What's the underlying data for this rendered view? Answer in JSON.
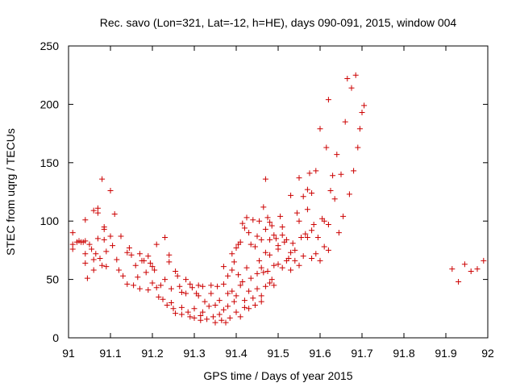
{
  "chart_data": {
    "type": "scatter",
    "title": "Rec. savo (Lon=321, Lat=-12, h=HE), days 090-091, 2015, window 004",
    "xlabel": "GPS time / Days of year 2015",
    "ylabel": "STEC from uqrg / TECUs",
    "xlim": [
      91,
      92
    ],
    "ylim": [
      0,
      250
    ],
    "x_ticks": [
      91,
      91.1,
      91.2,
      91.3,
      91.4,
      91.5,
      91.6,
      91.7,
      91.8,
      91.9,
      92
    ],
    "x_tick_labels": [
      "91",
      "91.1",
      "91.2",
      "91.3",
      "91.4",
      "91.5",
      "91.6",
      "91.7",
      "91.8",
      "91.9",
      "92"
    ],
    "y_ticks": [
      0,
      50,
      100,
      150,
      200,
      250
    ],
    "y_tick_labels": [
      "0",
      "50",
      "100",
      "150",
      "200",
      "250"
    ],
    "grid": false,
    "marker": "+",
    "colors": {
      "marker": "#cc0000",
      "axis": "#000000"
    },
    "series": [
      {
        "points": [
          [
            91.01,
            90
          ],
          [
            91.01,
            80
          ],
          [
            91.01,
            76
          ],
          [
            91.02,
            82
          ],
          [
            91.025,
            83
          ],
          [
            91.03,
            82
          ],
          [
            91.035,
            82
          ],
          [
            91.04,
            101
          ],
          [
            91.04,
            83
          ],
          [
            91.04,
            72
          ],
          [
            91.04,
            64
          ],
          [
            91.045,
            51
          ],
          [
            91.05,
            80
          ],
          [
            91.055,
            76
          ],
          [
            91.06,
            109
          ],
          [
            91.06,
            67
          ],
          [
            91.06,
            58
          ],
          [
            91.065,
            72
          ],
          [
            91.07,
            111
          ],
          [
            91.07,
            107
          ],
          [
            91.07,
            85
          ],
          [
            91.075,
            68
          ],
          [
            91.08,
            62
          ],
          [
            91.085,
            95
          ],
          [
            91.085,
            93
          ],
          [
            91.085,
            84
          ],
          [
            91.09,
            74
          ],
          [
            91.09,
            61
          ],
          [
            91.08,
            136
          ],
          [
            91.1,
            126
          ],
          [
            91.1,
            87
          ],
          [
            91.105,
            79
          ],
          [
            91.11,
            106
          ],
          [
            91.115,
            67
          ],
          [
            91.12,
            58
          ],
          [
            91.125,
            87
          ],
          [
            91.13,
            53
          ],
          [
            91.14,
            73
          ],
          [
            91.14,
            46
          ],
          [
            91.145,
            77
          ],
          [
            91.15,
            71
          ],
          [
            91.155,
            45
          ],
          [
            91.16,
            62
          ],
          [
            91.165,
            52
          ],
          [
            91.17,
            42
          ],
          [
            91.17,
            72
          ],
          [
            91.175,
            66
          ],
          [
            91.18,
            66
          ],
          [
            91.185,
            56
          ],
          [
            91.19,
            41
          ],
          [
            91.19,
            70
          ],
          [
            91.195,
            64
          ],
          [
            91.2,
            61
          ],
          [
            91.2,
            47
          ],
          [
            91.205,
            58
          ],
          [
            91.21,
            80
          ],
          [
            91.21,
            43
          ],
          [
            91.215,
            35
          ],
          [
            91.22,
            45
          ],
          [
            91.225,
            33
          ],
          [
            91.23,
            86
          ],
          [
            91.23,
            50
          ],
          [
            91.235,
            28
          ],
          [
            91.24,
            71
          ],
          [
            91.24,
            65
          ],
          [
            91.245,
            42
          ],
          [
            91.245,
            30
          ],
          [
            91.25,
            25
          ],
          [
            91.255,
            21
          ],
          [
            91.255,
            57
          ],
          [
            91.26,
            53
          ],
          [
            91.265,
            44
          ],
          [
            91.27,
            26
          ],
          [
            91.27,
            39
          ],
          [
            91.27,
            20
          ],
          [
            91.28,
            50
          ],
          [
            91.28,
            38
          ],
          [
            91.285,
            22
          ],
          [
            91.29,
            18
          ],
          [
            91.29,
            46
          ],
          [
            91.295,
            43
          ],
          [
            91.3,
            25
          ],
          [
            91.3,
            17
          ],
          [
            91.305,
            38
          ],
          [
            91.31,
            45
          ],
          [
            91.31,
            36
          ],
          [
            91.315,
            19
          ],
          [
            91.315,
            15
          ],
          [
            91.32,
            44
          ],
          [
            91.32,
            22
          ],
          [
            91.325,
            31
          ],
          [
            91.33,
            16
          ],
          [
            91.335,
            27
          ],
          [
            91.34,
            45
          ],
          [
            91.34,
            38
          ],
          [
            91.345,
            18
          ],
          [
            91.35,
            13
          ],
          [
            91.35,
            28
          ],
          [
            91.355,
            44
          ],
          [
            91.36,
            32
          ],
          [
            91.36,
            20
          ],
          [
            91.365,
            15
          ],
          [
            91.37,
            46
          ],
          [
            91.37,
            24
          ],
          [
            91.375,
            13
          ],
          [
            91.38,
            38
          ],
          [
            91.38,
            27
          ],
          [
            91.385,
            17
          ],
          [
            91.39,
            58
          ],
          [
            91.39,
            40
          ],
          [
            91.395,
            31
          ],
          [
            91.4,
            22
          ],
          [
            91.4,
            36
          ],
          [
            91.405,
            54
          ],
          [
            91.41,
            18
          ],
          [
            91.41,
            45
          ],
          [
            91.415,
            48
          ],
          [
            91.42,
            32
          ],
          [
            91.42,
            26
          ],
          [
            91.425,
            60
          ],
          [
            91.43,
            25
          ],
          [
            91.43,
            40
          ],
          [
            91.435,
            51
          ],
          [
            91.44,
            34
          ],
          [
            91.445,
            28
          ],
          [
            91.45,
            42
          ],
          [
            91.455,
            66
          ],
          [
            91.46,
            36
          ],
          [
            91.46,
            31
          ],
          [
            91.465,
            56
          ],
          [
            91.47,
            44
          ],
          [
            91.475,
            57
          ],
          [
            91.48,
            47
          ],
          [
            91.485,
            50
          ],
          [
            91.49,
            45
          ],
          [
            91.37,
            61
          ],
          [
            91.38,
            53
          ],
          [
            91.39,
            72
          ],
          [
            91.395,
            65
          ],
          [
            91.4,
            77
          ],
          [
            91.405,
            80
          ],
          [
            91.41,
            82
          ],
          [
            91.415,
            98
          ],
          [
            91.42,
            94
          ],
          [
            91.425,
            103
          ],
          [
            91.43,
            90
          ],
          [
            91.435,
            80
          ],
          [
            91.44,
            101
          ],
          [
            91.445,
            78
          ],
          [
            91.45,
            87
          ],
          [
            91.455,
            100
          ],
          [
            91.46,
            84
          ],
          [
            91.465,
            112
          ],
          [
            91.47,
            93
          ],
          [
            91.475,
            103
          ],
          [
            91.48,
            84
          ],
          [
            91.485,
            96
          ],
          [
            91.49,
            88
          ],
          [
            91.495,
            85
          ],
          [
            91.5,
            79
          ],
          [
            91.505,
            104
          ],
          [
            91.51,
            88
          ],
          [
            91.515,
            82
          ],
          [
            91.52,
            84
          ],
          [
            91.525,
            68
          ],
          [
            91.53,
            122
          ],
          [
            91.535,
            81
          ],
          [
            91.54,
            66
          ],
          [
            91.545,
            107
          ],
          [
            91.55,
            100
          ],
          [
            91.555,
            86
          ],
          [
            91.56,
            121
          ],
          [
            91.565,
            89
          ],
          [
            91.57,
            110
          ],
          [
            91.575,
            141
          ],
          [
            91.58,
            124
          ],
          [
            91.585,
            97
          ],
          [
            91.59,
            143
          ],
          [
            91.595,
            86
          ],
          [
            91.6,
            179
          ],
          [
            91.605,
            102
          ],
          [
            91.61,
            100
          ],
          [
            91.615,
            163
          ],
          [
            91.62,
            75
          ],
          [
            91.625,
            126
          ],
          [
            91.63,
            139
          ],
          [
            91.635,
            119
          ],
          [
            91.64,
            157
          ],
          [
            91.645,
            90
          ],
          [
            91.65,
            140
          ],
          [
            91.655,
            104
          ],
          [
            91.66,
            185
          ],
          [
            91.665,
            222
          ],
          [
            91.67,
            123
          ],
          [
            91.675,
            214
          ],
          [
            91.68,
            143
          ],
          [
            91.685,
            225
          ],
          [
            91.69,
            163
          ],
          [
            91.695,
            179
          ],
          [
            91.7,
            193
          ],
          [
            91.705,
            199
          ],
          [
            91.45,
            55
          ],
          [
            91.46,
            60
          ],
          [
            91.47,
            73
          ],
          [
            91.48,
            71
          ],
          [
            91.49,
            62
          ],
          [
            91.5,
            76
          ],
          [
            91.51,
            60
          ],
          [
            91.52,
            66
          ],
          [
            91.53,
            58
          ],
          [
            91.54,
            75
          ],
          [
            91.55,
            62
          ],
          [
            91.56,
            70
          ],
          [
            91.57,
            86
          ],
          [
            91.58,
            68
          ],
          [
            91.59,
            72
          ],
          [
            91.6,
            66
          ],
          [
            91.61,
            78
          ],
          [
            91.62,
            97
          ],
          [
            91.47,
            136
          ],
          [
            91.48,
            99
          ],
          [
            91.5,
            63
          ],
          [
            91.51,
            95
          ],
          [
            91.53,
            73
          ],
          [
            91.55,
            137
          ],
          [
            91.57,
            127
          ],
          [
            91.58,
            92
          ],
          [
            91.62,
            204
          ],
          [
            91.915,
            59
          ],
          [
            91.93,
            48
          ],
          [
            91.945,
            63
          ],
          [
            91.96,
            57
          ],
          [
            91.975,
            59
          ],
          [
            91.99,
            66
          ]
        ]
      }
    ]
  }
}
